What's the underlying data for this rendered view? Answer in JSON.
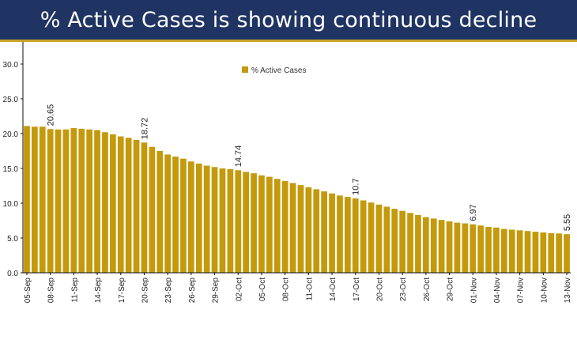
{
  "banner": {
    "title": "% Active Cases is showing continuous decline"
  },
  "colors": {
    "banner_bg": "#1f3462",
    "banner_accent": "#c9a227",
    "bar": "#c49a0c",
    "axis": "#111111"
  },
  "chart_data": {
    "type": "bar",
    "title": "",
    "xlabel": "",
    "ylabel": "",
    "ylim": [
      0,
      35
    ],
    "yticks_visible": [
      "0.0",
      "5.0",
      "10.0",
      "15.0",
      "20.0",
      "25.0",
      "30.0"
    ],
    "legend_position": "top-center",
    "grid": false,
    "series": [
      {
        "name": "% Active Cases",
        "color": "#c49a0c",
        "dates": [
          "05-Sep",
          "06-Sep",
          "07-Sep",
          "08-Sep",
          "09-Sep",
          "10-Sep",
          "11-Sep",
          "12-Sep",
          "13-Sep",
          "14-Sep",
          "15-Sep",
          "16-Sep",
          "17-Sep",
          "18-Sep",
          "19-Sep",
          "20-Sep",
          "21-Sep",
          "22-Sep",
          "23-Sep",
          "24-Sep",
          "25-Sep",
          "26-Sep",
          "27-Sep",
          "28-Sep",
          "29-Sep",
          "30-Sep",
          "01-Oct",
          "02-Oct",
          "03-Oct",
          "04-Oct",
          "05-Oct",
          "06-Oct",
          "07-Oct",
          "08-Oct",
          "09-Oct",
          "10-Oct",
          "11-Oct",
          "12-Oct",
          "13-Oct",
          "14-Oct",
          "15-Oct",
          "16-Oct",
          "17-Oct",
          "18-Oct",
          "19-Oct",
          "20-Oct",
          "21-Oct",
          "22-Oct",
          "23-Oct",
          "24-Oct",
          "25-Oct",
          "26-Oct",
          "27-Oct",
          "28-Oct",
          "29-Oct",
          "30-Oct",
          "31-Oct",
          "01-Nov",
          "02-Nov",
          "03-Nov",
          "04-Nov",
          "05-Nov",
          "06-Nov",
          "07-Nov",
          "08-Nov",
          "09-Nov",
          "10-Nov",
          "11-Nov",
          "12-Nov",
          "13-Nov"
        ],
        "values": [
          21.1,
          21.0,
          21.0,
          20.65,
          20.6,
          20.6,
          20.8,
          20.7,
          20.6,
          20.5,
          20.2,
          19.9,
          19.6,
          19.4,
          19.1,
          18.72,
          18.1,
          17.5,
          17.0,
          16.7,
          16.4,
          16.0,
          15.7,
          15.4,
          15.2,
          15.0,
          14.9,
          14.74,
          14.5,
          14.3,
          14.0,
          13.8,
          13.5,
          13.2,
          12.9,
          12.6,
          12.3,
          12.0,
          11.7,
          11.4,
          11.1,
          10.9,
          10.7,
          10.4,
          10.1,
          9.8,
          9.5,
          9.2,
          8.9,
          8.6,
          8.3,
          8.0,
          7.8,
          7.6,
          7.4,
          7.2,
          7.1,
          6.97,
          6.8,
          6.6,
          6.5,
          6.3,
          6.2,
          6.1,
          6.0,
          5.9,
          5.8,
          5.7,
          5.65,
          5.55
        ]
      }
    ],
    "x_tick_labels": [
      "05-Sep",
      "08-Sep",
      "11-Sep",
      "14-Sep",
      "17-Sep",
      "20-Sep",
      "23-Sep",
      "26-Sep",
      "29-Sep",
      "02-Oct",
      "05-Oct",
      "08-Oct",
      "11-Oct",
      "14-Oct",
      "17-Oct",
      "20-Oct",
      "23-Oct",
      "26-Oct",
      "29-Oct",
      "01-Nov",
      "04-Nov",
      "07-Nov",
      "10-Nov",
      "13-Nov"
    ],
    "data_labels": [
      {
        "date": "08-Sep",
        "text": "20.65"
      },
      {
        "date": "20-Sep",
        "text": "18.72"
      },
      {
        "date": "02-Oct",
        "text": "14.74"
      },
      {
        "date": "17-Oct",
        "text": "10.7"
      },
      {
        "date": "01-Nov",
        "text": "6.97"
      },
      {
        "date": "13-Nov",
        "text": "5.55"
      }
    ]
  }
}
